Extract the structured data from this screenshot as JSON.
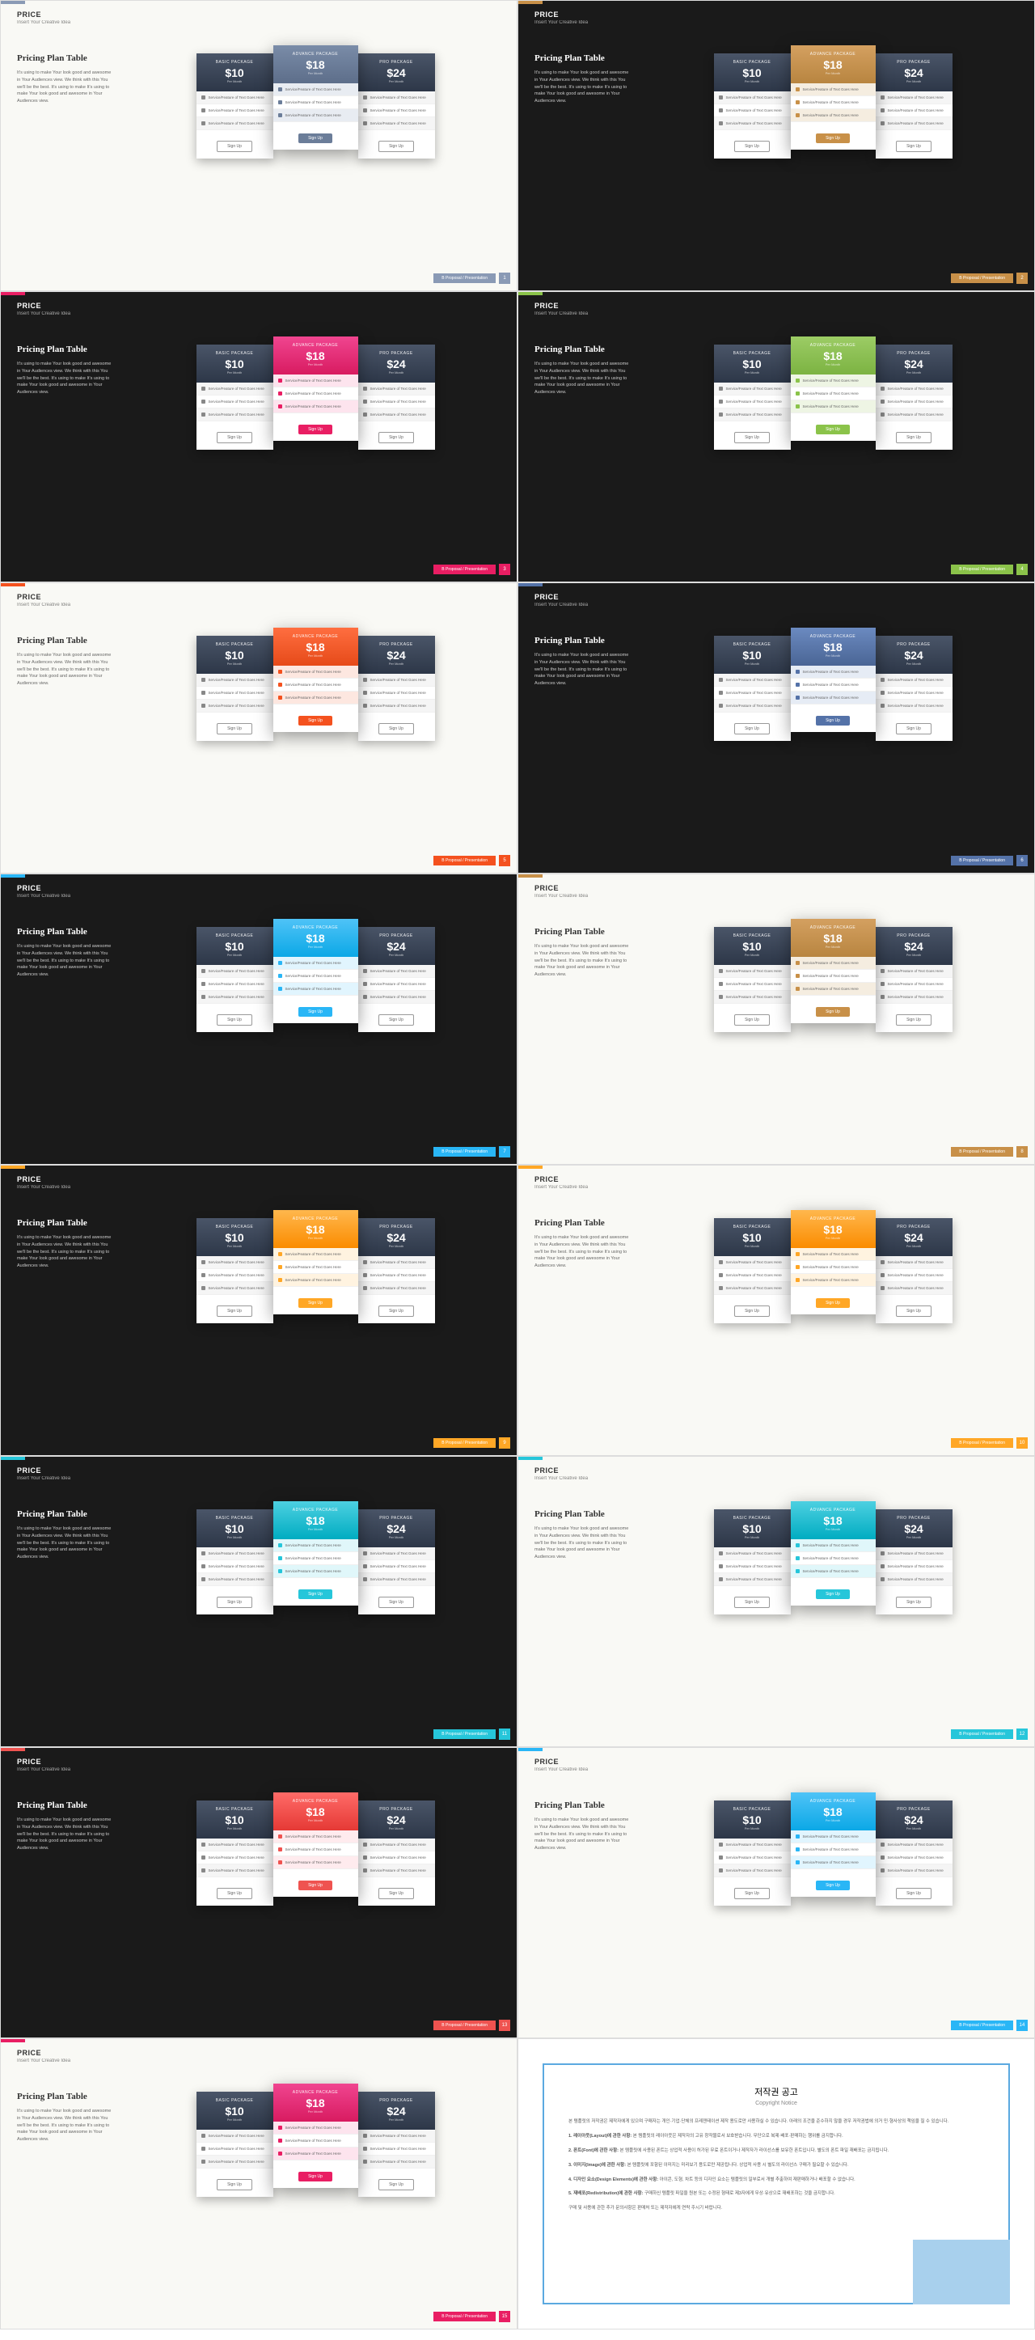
{
  "header": {
    "title": "PRICE",
    "subtitle": "Insert Your Creative Idea"
  },
  "section": {
    "title": "Pricing Plan Table",
    "description": "It's using to make Your look good and awesome in Your Audiences view. We think with this You we'll be the best. It's using to make It's using to make Your look good and awesome in Your Audiences view."
  },
  "packages": {
    "basic": {
      "label": "BASIC PACKAGE",
      "price": "$10",
      "period": "Per Month"
    },
    "advance": {
      "label": "ADVANCE PACKAGE",
      "price": "$18",
      "period": "Per Month"
    },
    "pro": {
      "label": "PRO PACKAGE",
      "price": "$24",
      "period": "Per Month"
    }
  },
  "feature_text": "Service/Feature of Text Goes Here",
  "button_label": "Sign Up",
  "footer_tag": "B Proposal / Presentation",
  "side_header_gradient": "linear-gradient(180deg, #4a5568 0%, #2d3748 100%)",
  "slides": [
    {
      "bg": "light",
      "accent": "#8a9ab5",
      "mid_hdr": "linear-gradient(180deg,#7a8ca8,#5d6e8a)",
      "mid_btn": "#6b7d99",
      "feat_bg": "#e8ecf2"
    },
    {
      "bg": "dark",
      "accent": "#c89048",
      "mid_hdr": "linear-gradient(180deg,#d4a060,#b88540)",
      "mid_btn": "#c89048",
      "feat_bg": "#f5ede0"
    },
    {
      "bg": "dark",
      "accent": "#e91e63",
      "mid_hdr": "linear-gradient(180deg,#f04590,#d81b60)",
      "mid_btn": "#e91e63",
      "feat_bg": "#fde4ee"
    },
    {
      "bg": "dark",
      "accent": "#8bc34a",
      "mid_hdr": "linear-gradient(180deg,#9ccc65,#7cb342)",
      "mid_btn": "#8bc34a",
      "feat_bg": "#eef5e4"
    },
    {
      "bg": "light",
      "accent": "#f4511e",
      "mid_hdr": "linear-gradient(180deg,#ff6e40,#e64a19)",
      "mid_btn": "#f4511e",
      "feat_bg": "#fde7e0"
    },
    {
      "bg": "dark",
      "accent": "#5472a8",
      "mid_hdr": "linear-gradient(180deg,#6b8ac0,#4a6595)",
      "mid_btn": "#5472a8",
      "feat_bg": "#e6ecf5"
    },
    {
      "bg": "dark",
      "accent": "#29b6f6",
      "mid_hdr": "linear-gradient(180deg,#4fc3f7,#0ba8e6)",
      "mid_btn": "#29b6f6",
      "feat_bg": "#e1f5fe"
    },
    {
      "bg": "light",
      "accent": "#c89048",
      "mid_hdr": "linear-gradient(180deg,#d4a060,#b88540)",
      "mid_btn": "#c89048",
      "feat_bg": "#f5ede0"
    },
    {
      "bg": "dark",
      "accent": "#ffa726",
      "mid_hdr": "linear-gradient(180deg,#ffb74d,#fb8c00)",
      "mid_btn": "#ffa726",
      "feat_bg": "#fff3e0"
    },
    {
      "bg": "light",
      "accent": "#ffa726",
      "mid_hdr": "linear-gradient(180deg,#ffb74d,#fb8c00)",
      "mid_btn": "#ffa726",
      "feat_bg": "#fff3e0"
    },
    {
      "bg": "dark",
      "accent": "#26c6da",
      "mid_hdr": "linear-gradient(180deg,#4dd0e1,#00acc1)",
      "mid_btn": "#26c6da",
      "feat_bg": "#e0f7fa"
    },
    {
      "bg": "light",
      "accent": "#26c6da",
      "mid_hdr": "linear-gradient(180deg,#4dd0e1,#00acc1)",
      "mid_btn": "#26c6da",
      "feat_bg": "#e0f7fa"
    },
    {
      "bg": "dark",
      "accent": "#ef5350",
      "mid_hdr": "linear-gradient(180deg,#ff6b68,#e53935)",
      "mid_btn": "#ef5350",
      "feat_bg": "#ffebee"
    },
    {
      "bg": "light",
      "accent": "#29b6f6",
      "mid_hdr": "linear-gradient(180deg,#4fc3f7,#0ba8e6)",
      "mid_btn": "#29b6f6",
      "feat_bg": "#e1f5fe"
    },
    {
      "bg": "light",
      "accent": "#e91e63",
      "mid_hdr": "linear-gradient(180deg,#f04590,#d81b60)",
      "mid_btn": "#e91e63",
      "feat_bg": "#fde4ee"
    }
  ],
  "copyright": {
    "title": "저작권 공고",
    "subtitle": "Copyright Notice",
    "border_color": "#5ba9e0",
    "corner_color": "#a8d0ed",
    "paragraphs": [
      "본 템플릿의 저작권은 제작자에게 있으며 구매자는 개인·기업·단체의 프레젠테이션 제작 용도로만 사용하실 수 있습니다. 아래의 조건을 준수하지 않을 경우 저작권법에 의거 민·형사상의 책임을 질 수 있습니다.",
      "1. 레이아웃(Layout)에 관한 사항: 본 템플릿의 레이아웃은 제작자의 고유 창작물로서 보호받습니다. 무단으로 복제·배포·판매하는 행위를 금지합니다.",
      "2. 폰트(Font)에 관한 사항: 본 템플릿에 사용된 폰트는 상업적 사용이 허가된 무료 폰트이거나 제작자가 라이선스를 보유한 폰트입니다. 별도의 폰트 파일 재배포는 금지됩니다.",
      "3. 이미지(Image)에 관한 사항: 본 템플릿에 포함된 이미지는 미리보기 용도로만 제공됩니다. 상업적 사용 시 별도의 라이선스 구매가 필요할 수 있습니다.",
      "4. 디자인 요소(Design Elements)에 관한 사항: 아이콘, 도형, 차트 등의 디자인 요소는 템플릿의 일부로서 개별 추출하여 재판매하거나 배포할 수 없습니다.",
      "5. 재배포(Redistribution)에 관한 사항: 구매하신 템플릿 파일을 원본 또는 수정된 형태로 제3자에게 무상·유상으로 재배포하는 것을 금지합니다.",
      "구매 및 사용에 관한 추가 문의사항은 판매처 또는 제작자에게 연락 주시기 바랍니다."
    ]
  }
}
